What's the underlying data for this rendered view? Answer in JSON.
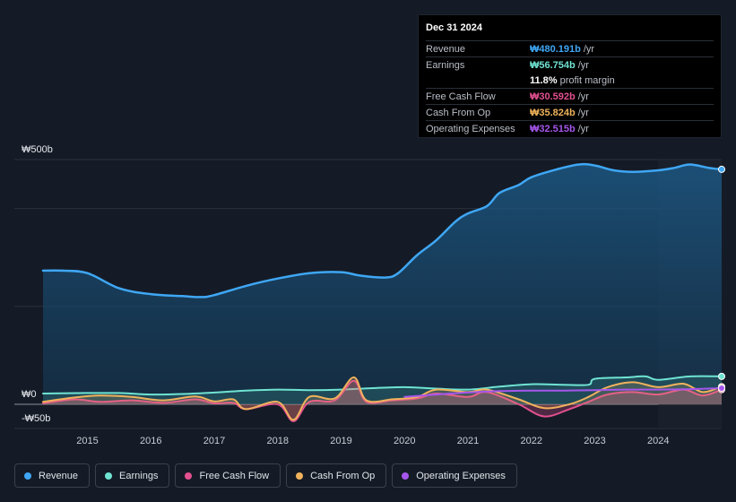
{
  "tooltip": {
    "date": "Dec 31 2024",
    "rows": [
      {
        "label": "Revenue",
        "value": "₩480.191b",
        "unit": "/yr",
        "color": "#3fa7f5"
      },
      {
        "label": "Earnings",
        "value": "₩56.754b",
        "unit": "/yr",
        "color": "#6fe3d2"
      },
      {
        "label": "",
        "value": "11.8%",
        "unit": "profit margin",
        "color": "#ffffff"
      },
      {
        "label": "Free Cash Flow",
        "value": "₩30.592b",
        "unit": "/yr",
        "color": "#e2508f"
      },
      {
        "label": "Cash From Op",
        "value": "₩35.824b",
        "unit": "/yr",
        "color": "#f0b25c"
      },
      {
        "label": "Operating Expenses",
        "value": "₩32.515b",
        "unit": "/yr",
        "color": "#a656ec"
      }
    ]
  },
  "legend": [
    {
      "label": "Revenue",
      "color": "#3fa7f5"
    },
    {
      "label": "Earnings",
      "color": "#6fe3d2"
    },
    {
      "label": "Free Cash Flow",
      "color": "#e2508f"
    },
    {
      "label": "Cash From Op",
      "color": "#f0b25c"
    },
    {
      "label": "Operating Expenses",
      "color": "#a656ec"
    }
  ],
  "chart_data": {
    "type": "area",
    "title": "",
    "xlabel": "",
    "ylabel": "",
    "ylim": [
      -50,
      500
    ],
    "xlim": [
      2014.3,
      2025.0
    ],
    "y_tick_labels": [
      {
        "value": 500,
        "label": "₩500b"
      },
      {
        "value": 0,
        "label": "₩0"
      },
      {
        "value": -50,
        "label": "-₩50b"
      }
    ],
    "x_tick_labels": [
      "2015",
      "2016",
      "2017",
      "2018",
      "2019",
      "2020",
      "2021",
      "2022",
      "2023",
      "2024"
    ],
    "x_ticks": [
      2015,
      2016,
      2017,
      2018,
      2019,
      2020,
      2021,
      2022,
      2023,
      2024
    ],
    "gridlines": [
      0,
      200,
      400,
      500
    ],
    "highlight_start": 2024.0,
    "series": [
      {
        "name": "Revenue",
        "color": "#3fa7f5",
        "fill": true,
        "x": [
          2014.3,
          2014.6,
          2015.0,
          2015.5,
          2016.0,
          2016.5,
          2016.8,
          2017.0,
          2017.5,
          2018.0,
          2018.5,
          2019.0,
          2019.3,
          2019.7,
          2019.9,
          2020.2,
          2020.5,
          2020.8,
          2021.0,
          2021.3,
          2021.5,
          2021.8,
          2022.0,
          2022.4,
          2022.75,
          2023.0,
          2023.3,
          2023.6,
          2024.0,
          2024.25,
          2024.5,
          2024.8,
          2025.0
        ],
        "values": [
          273,
          273,
          268,
          237,
          225,
          221,
          219,
          223,
          242,
          257,
          268,
          270,
          263,
          259,
          268,
          305,
          335,
          373,
          390,
          405,
          432,
          448,
          464,
          480,
          490,
          488,
          478,
          475,
          478,
          483,
          490,
          483,
          480
        ]
      },
      {
        "name": "Earnings",
        "color": "#6fe3d2",
        "fill": true,
        "x": [
          2014.3,
          2015.0,
          2015.5,
          2016.0,
          2016.5,
          2017.0,
          2017.5,
          2018.0,
          2018.5,
          2019.0,
          2019.5,
          2020.0,
          2020.5,
          2021.0,
          2021.5,
          2022.0,
          2022.5,
          2022.9,
          2023.0,
          2023.5,
          2023.8,
          2024.0,
          2024.5,
          2025.0
        ],
        "values": [
          22,
          23,
          23,
          20,
          21,
          24,
          28,
          30,
          29,
          30,
          33,
          35,
          32,
          30,
          36,
          41,
          40,
          40,
          52,
          55,
          57,
          50,
          57,
          57
        ]
      },
      {
        "name": "Free Cash Flow",
        "color": "#e2508f",
        "fill": true,
        "x": [
          2014.3,
          2014.8,
          2015.2,
          2015.7,
          2016.2,
          2016.7,
          2017.0,
          2017.3,
          2017.5,
          2018.0,
          2018.25,
          2018.5,
          2018.9,
          2019.2,
          2019.4,
          2019.8,
          2020.2,
          2020.5,
          2021.0,
          2021.3,
          2021.8,
          2022.2,
          2022.6,
          2022.9,
          2023.2,
          2023.6,
          2024.0,
          2024.4,
          2024.7,
          2025.0
        ],
        "values": [
          2,
          10,
          5,
          8,
          3,
          10,
          2,
          3,
          -10,
          0,
          -35,
          5,
          8,
          48,
          5,
          8,
          12,
          22,
          15,
          25,
          0,
          -25,
          -10,
          5,
          20,
          25,
          20,
          30,
          18,
          30
        ]
      },
      {
        "name": "Cash From Op",
        "color": "#f0b25c",
        "fill": true,
        "x": [
          2014.3,
          2014.8,
          2015.2,
          2015.7,
          2016.2,
          2016.7,
          2017.0,
          2017.3,
          2017.5,
          2018.0,
          2018.25,
          2018.5,
          2018.9,
          2019.2,
          2019.4,
          2019.8,
          2020.2,
          2020.5,
          2021.0,
          2021.3,
          2021.8,
          2022.2,
          2022.6,
          2022.9,
          2023.2,
          2023.6,
          2024.0,
          2024.4,
          2024.7,
          2025.0
        ],
        "values": [
          5,
          14,
          18,
          15,
          8,
          16,
          6,
          10,
          -10,
          5,
          -32,
          15,
          12,
          55,
          8,
          10,
          15,
          30,
          25,
          30,
          10,
          -8,
          0,
          15,
          35,
          45,
          35,
          42,
          25,
          36
        ]
      },
      {
        "name": "Operating Expenses",
        "color": "#a656ec",
        "fill": false,
        "x": [
          2020.0,
          2020.5,
          2021.0,
          2021.5,
          2022.0,
          2022.5,
          2023.0,
          2023.5,
          2024.0,
          2024.5,
          2025.0
        ],
        "values": [
          15,
          20,
          24,
          27,
          28,
          28,
          29,
          30,
          30,
          31,
          33
        ]
      }
    ]
  }
}
